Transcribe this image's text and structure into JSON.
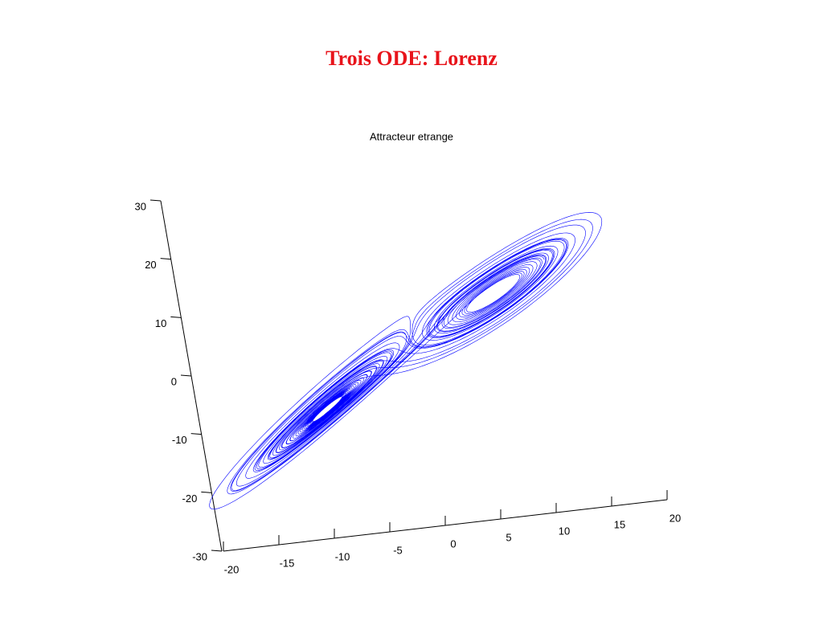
{
  "slide_title": "Trois ODE: Lorenz",
  "chart_data": {
    "type": "line3d",
    "title": "Attracteur etrange",
    "color": "#0000ff",
    "xlim": [
      -20,
      20
    ],
    "xticks": [
      -20,
      -15,
      -10,
      -5,
      0,
      5,
      10,
      15,
      20
    ],
    "ylim": [
      -30,
      30
    ],
    "yticks": [
      -30,
      -20,
      -10,
      0,
      10,
      20,
      30
    ]
  }
}
